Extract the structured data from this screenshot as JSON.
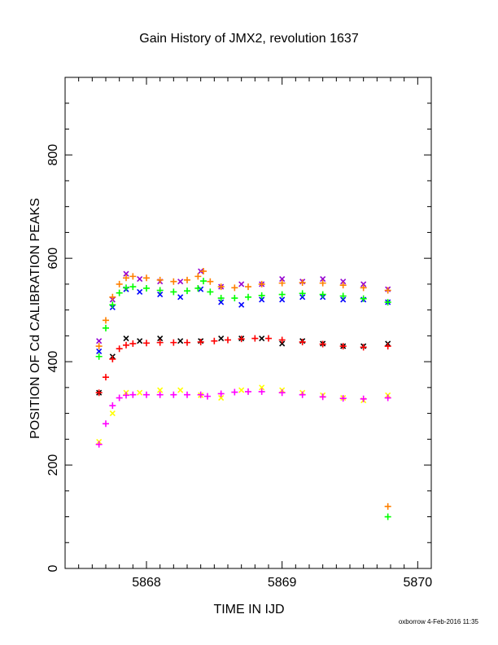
{
  "chart_data": {
    "type": "scatter",
    "title": "Gain History of JMX2, revolution 1637",
    "xlabel": "TIME IN IJD",
    "ylabel": "POSITION OF Cd CALIBRATION PEAKS",
    "xlim": [
      5867.4,
      5870.1
    ],
    "ylim": [
      0,
      950
    ],
    "xticks": [
      5868,
      5869,
      5870
    ],
    "yticks": [
      0,
      200,
      400,
      600,
      800
    ],
    "grid": false,
    "legend": "none",
    "series": [
      {
        "color": "#9400d3",
        "marker": "x",
        "x": [
          5867.65,
          5867.75,
          5867.85,
          5867.95,
          5868.1,
          5868.25,
          5868.4,
          5868.55,
          5868.7,
          5868.85,
          5869.0,
          5869.15,
          5869.3,
          5869.45,
          5869.6,
          5869.78
        ],
        "y": [
          440,
          520,
          570,
          560,
          555,
          555,
          575,
          545,
          550,
          550,
          560,
          555,
          560,
          555,
          550,
          540
        ]
      },
      {
        "color": "#0000ff",
        "marker": "x",
        "x": [
          5867.65,
          5867.75,
          5867.85,
          5867.95,
          5868.1,
          5868.25,
          5868.4,
          5868.55,
          5868.7,
          5868.85,
          5869.0,
          5869.15,
          5869.3,
          5869.45,
          5869.6,
          5869.78
        ],
        "y": [
          420,
          505,
          540,
          535,
          530,
          525,
          540,
          515,
          510,
          520,
          520,
          525,
          525,
          520,
          520,
          515
        ]
      },
      {
        "color": "#ff8000",
        "marker": "+",
        "x": [
          5867.65,
          5867.7,
          5867.75,
          5867.8,
          5867.85,
          5867.9,
          5868.0,
          5868.1,
          5868.2,
          5868.3,
          5868.38,
          5868.42,
          5868.47,
          5868.55,
          5868.65,
          5868.75,
          5868.85,
          5869.0,
          5869.15,
          5869.3,
          5869.45,
          5869.6,
          5869.78
        ],
        "y": [
          430,
          480,
          525,
          550,
          562,
          565,
          562,
          558,
          555,
          558,
          565,
          575,
          555,
          545,
          543,
          545,
          550,
          552,
          553,
          552,
          548,
          543,
          538
        ]
      },
      {
        "color": "#00ff00",
        "marker": "+",
        "x": [
          5867.65,
          5867.7,
          5867.75,
          5867.8,
          5867.85,
          5867.9,
          5868.0,
          5868.1,
          5868.2,
          5868.3,
          5868.38,
          5868.42,
          5868.47,
          5868.55,
          5868.65,
          5868.75,
          5868.85,
          5869.0,
          5869.15,
          5869.3,
          5869.45,
          5869.6,
          5869.78
        ],
        "y": [
          410,
          465,
          510,
          533,
          543,
          545,
          542,
          538,
          535,
          537,
          542,
          556,
          535,
          523,
          523,
          525,
          528,
          530,
          532,
          530,
          527,
          522,
          515
        ]
      },
      {
        "color": "#000000",
        "marker": "x",
        "x": [
          5867.65,
          5867.75,
          5867.85,
          5867.95,
          5868.1,
          5868.25,
          5868.4,
          5868.55,
          5868.7,
          5868.85,
          5869.0,
          5869.15,
          5869.3,
          5869.45,
          5869.6,
          5869.78
        ],
        "y": [
          340,
          410,
          445,
          440,
          445,
          440,
          440,
          445,
          445,
          445,
          435,
          440,
          435,
          430,
          430,
          435
        ]
      },
      {
        "color": "#ff0000",
        "marker": "+",
        "x": [
          5867.65,
          5867.7,
          5867.75,
          5867.8,
          5867.85,
          5867.9,
          5868.0,
          5868.1,
          5868.2,
          5868.3,
          5868.4,
          5868.5,
          5868.6,
          5868.7,
          5868.8,
          5868.9,
          5869.0,
          5869.15,
          5869.3,
          5869.45,
          5869.6,
          5869.78
        ],
        "y": [
          340,
          370,
          405,
          425,
          432,
          435,
          436,
          437,
          437,
          437,
          438,
          440,
          442,
          444,
          445,
          445,
          442,
          438,
          434,
          430,
          428,
          430
        ]
      },
      {
        "color": "#ffff00",
        "marker": "x",
        "x": [
          5867.65,
          5867.75,
          5867.85,
          5867.95,
          5868.1,
          5868.25,
          5868.4,
          5868.55,
          5868.7,
          5868.85,
          5869.0,
          5869.15,
          5869.3,
          5869.45,
          5869.6,
          5869.78
        ],
        "y": [
          245,
          300,
          340,
          340,
          345,
          345,
          335,
          330,
          345,
          350,
          345,
          340,
          335,
          330,
          325,
          335
        ]
      },
      {
        "color": "#ff00ff",
        "marker": "+",
        "x": [
          5867.65,
          5867.7,
          5867.75,
          5867.8,
          5867.85,
          5867.9,
          5868.0,
          5868.1,
          5868.2,
          5868.3,
          5868.4,
          5868.45,
          5868.55,
          5868.65,
          5868.75,
          5868.85,
          5869.0,
          5869.15,
          5869.3,
          5869.45,
          5869.6,
          5869.78
        ],
        "y": [
          240,
          280,
          315,
          330,
          335,
          336,
          336,
          336,
          336,
          336,
          336,
          333,
          338,
          341,
          342,
          342,
          340,
          336,
          332,
          329,
          328,
          330
        ]
      },
      {
        "color": "#ff8000",
        "marker": "+",
        "x": [
          5869.78
        ],
        "y": [
          120
        ]
      },
      {
        "color": "#00ff00",
        "marker": "+",
        "x": [
          5869.78
        ],
        "y": [
          100
        ]
      }
    ]
  },
  "footer": "oxborrow 4-Feb-2016 11:35"
}
